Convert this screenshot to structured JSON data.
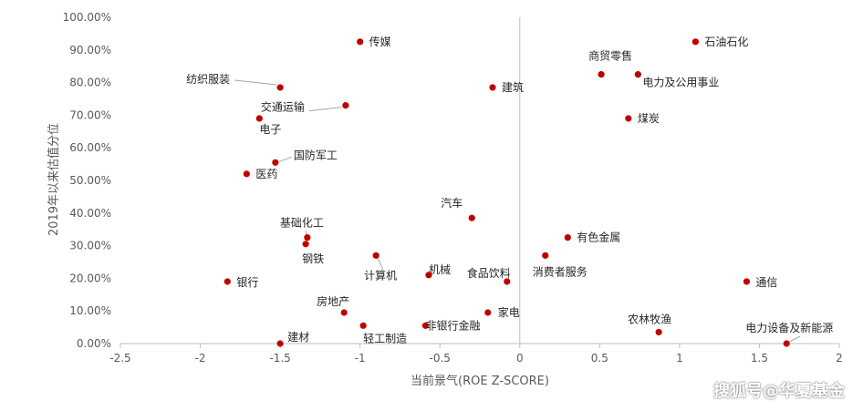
{
  "chart_data": {
    "type": "scatter",
    "xlabel": "当前景气(ROE  Z-SCORE)",
    "ylabel": "2019年以来估值分位",
    "xlim": [
      -2.5,
      2
    ],
    "ylim": [
      0,
      1
    ],
    "x_ticks": [
      "-2.5",
      "-2",
      "-1.5",
      "-1",
      "-0.5",
      "0",
      "0.5",
      "1",
      "1.5",
      "2"
    ],
    "y_ticks": [
      "0.00%",
      "10.00%",
      "20.00%",
      "30.00%",
      "40.00%",
      "50.00%",
      "60.00%",
      "70.00%",
      "80.00%",
      "90.00%",
      "100.00%"
    ],
    "grid": false,
    "marker_color": "#C00000",
    "points": [
      {
        "label": "传媒",
        "x": -1.0,
        "y": 0.925
      },
      {
        "label": "石油石化",
        "x": 1.1,
        "y": 0.925
      },
      {
        "label": "纺织服装",
        "x": -1.5,
        "y": 0.785
      },
      {
        "label": "商贸零售",
        "x": 0.51,
        "y": 0.825
      },
      {
        "label": "电力及公用事业",
        "x": 0.74,
        "y": 0.825
      },
      {
        "label": "建筑",
        "x": -0.17,
        "y": 0.785
      },
      {
        "label": "交通运输",
        "x": -1.09,
        "y": 0.73
      },
      {
        "label": "电子",
        "x": -1.63,
        "y": 0.69
      },
      {
        "label": "煤炭",
        "x": 0.68,
        "y": 0.69
      },
      {
        "label": "国防军工",
        "x": -1.53,
        "y": 0.555
      },
      {
        "label": "医药",
        "x": -1.71,
        "y": 0.52
      },
      {
        "label": "汽车",
        "x": -0.3,
        "y": 0.385
      },
      {
        "label": "基础化工",
        "x": -1.33,
        "y": 0.325
      },
      {
        "label": "钢铁",
        "x": -1.34,
        "y": 0.305
      },
      {
        "label": "有色金属",
        "x": 0.3,
        "y": 0.325
      },
      {
        "label": "计算机",
        "x": -0.9,
        "y": 0.27
      },
      {
        "label": "消费者服务",
        "x": 0.16,
        "y": 0.27
      },
      {
        "label": "机械",
        "x": -0.57,
        "y": 0.21
      },
      {
        "label": "食品饮料",
        "x": -0.08,
        "y": 0.19
      },
      {
        "label": "银行",
        "x": -1.83,
        "y": 0.19
      },
      {
        "label": "通信",
        "x": 1.42,
        "y": 0.19
      },
      {
        "label": "房地产",
        "x": -1.1,
        "y": 0.095
      },
      {
        "label": "家电",
        "x": -0.2,
        "y": 0.095
      },
      {
        "label": "轻工制造",
        "x": -0.98,
        "y": 0.055
      },
      {
        "label": "非银行金融",
        "x": -0.59,
        "y": 0.055
      },
      {
        "label": "农林牧渔",
        "x": 0.87,
        "y": 0.035
      },
      {
        "label": "建材",
        "x": -1.5,
        "y": 0.0
      },
      {
        "label": "电力设备及新能源",
        "x": 1.67,
        "y": 0.0
      }
    ]
  },
  "watermark": "搜狐号@华夏基金"
}
